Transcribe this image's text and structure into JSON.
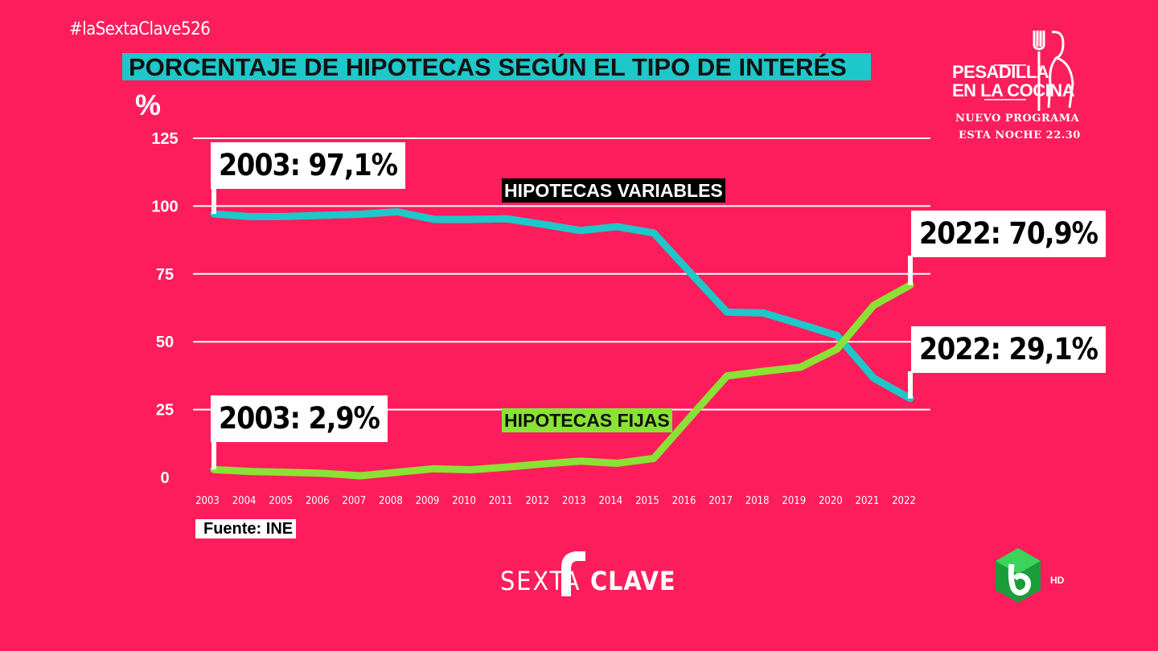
{
  "hashtag": "#laSextaClave526",
  "colors": {
    "background": "#fe1d5c",
    "variable": "#1ec7c9",
    "fixed": "#8ae234"
  },
  "chart_data": {
    "type": "line",
    "title": "PORCENTAJE DE HIPOTECAS SEGÚN EL TIPO DE INTERÉS",
    "ylabel": "%",
    "ylim": [
      0,
      125
    ],
    "yticks": [
      "0",
      "25",
      "50",
      "75",
      "100",
      "125"
    ],
    "x": [
      "2003",
      "2004",
      "2005",
      "2006",
      "2007",
      "2008",
      "2009",
      "2010",
      "2011",
      "2012",
      "2013",
      "2014",
      "2015",
      "2016",
      "2017",
      "2018",
      "2019",
      "2020",
      "2021",
      "2022"
    ],
    "series": [
      {
        "name": "HIPOTECAS VARIABLES",
        "color": "#1ec7c9",
        "values": [
          97.1,
          96.1,
          96.2,
          96.6,
          97.0,
          97.9,
          95.1,
          95.1,
          95.3,
          93.2,
          91.0,
          92.4,
          90.1,
          75.4,
          60.9,
          60.6,
          56.5,
          52.3,
          36.6,
          29.1
        ]
      },
      {
        "name": "HIPOTECAS FIJAS",
        "color": "#8ae234",
        "values": [
          2.9,
          2.2,
          1.9,
          1.5,
          0.6,
          1.9,
          3.2,
          2.8,
          3.8,
          5.0,
          6.0,
          5.2,
          7.0,
          22.3,
          37.4,
          39.1,
          40.6,
          47.3,
          63.4,
          70.9
        ]
      }
    ],
    "annotations": [
      "2003: 97,1%",
      "2022: 70,9%",
      "2022: 29,1%",
      "2003: 2,9%"
    ],
    "grid": true
  },
  "source": "Fuente: INE",
  "promo": {
    "title_line1": "PESADILLA",
    "title_line2": "EN LA COCINA",
    "line1": "NUEVO PROGRAMA",
    "line2": "ESTA NOCHE 22.30"
  },
  "brand": {
    "part1": "SEXTA",
    "part2": "CLAVE"
  },
  "channel_badge": "HD"
}
